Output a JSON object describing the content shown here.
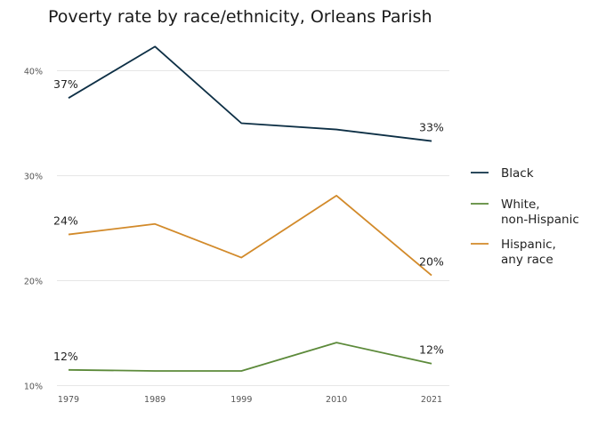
{
  "chart_data": {
    "type": "line",
    "title": "Poverty rate by race/ethnicity, Orleans Parish",
    "xlabel": "",
    "ylabel": "",
    "x": [
      1979,
      1989,
      1999,
      2010,
      2021
    ],
    "x_tick_labels": [
      "1979",
      "1989",
      "1999",
      "2010",
      "2021"
    ],
    "ylim": [
      10,
      43
    ],
    "y_ticks": [
      10,
      20,
      30,
      40
    ],
    "y_tick_labels": [
      "10%",
      "20%",
      "30%",
      "40%"
    ],
    "grid": "horizontal",
    "legend_position": "right",
    "series": [
      {
        "name": "Black",
        "legend_lines": [
          "Black"
        ],
        "color": "#0d2f45",
        "values": [
          37.4,
          42.3,
          35.0,
          34.4,
          33.3
        ],
        "labels": [
          {
            "index": 0,
            "text": "37%"
          },
          {
            "index": 4,
            "text": "33%"
          }
        ]
      },
      {
        "name": "White, non-Hispanic",
        "legend_lines": [
          "White,",
          "non-Hispanic"
        ],
        "color": "#5c8a3a",
        "values": [
          11.5,
          11.4,
          11.4,
          14.1,
          12.1
        ],
        "labels": [
          {
            "index": 0,
            "text": "12%"
          },
          {
            "index": 4,
            "text": "12%"
          }
        ]
      },
      {
        "name": "Hispanic, any race",
        "legend_lines": [
          "Hispanic,",
          "any race"
        ],
        "color": "#d28a2a",
        "values": [
          24.4,
          25.4,
          22.2,
          28.1,
          20.5
        ],
        "labels": [
          {
            "index": 0,
            "text": "24%"
          },
          {
            "index": 4,
            "text": "20%"
          }
        ]
      }
    ]
  }
}
